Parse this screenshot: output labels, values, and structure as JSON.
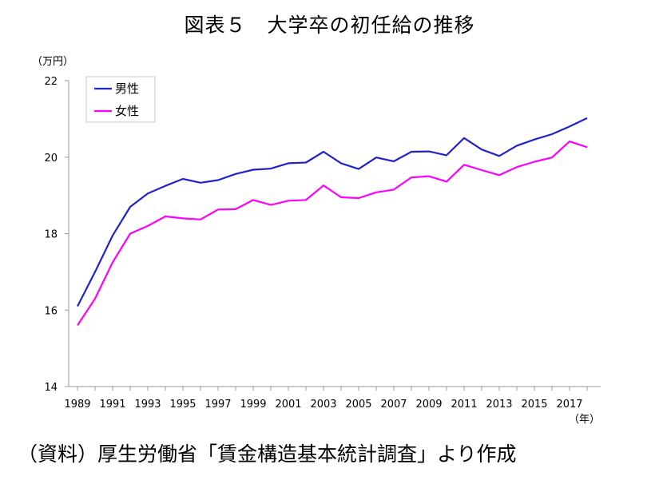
{
  "title": "図表５　大学卒の初任給の推移",
  "source": "（資料）厚生労働省「賃金構造基本統計調査」より作成",
  "chart_data": {
    "type": "line",
    "ylabel": "（万円）",
    "xlabel": "（年）",
    "ylim": [
      14,
      22
    ],
    "yticks": [
      14,
      16,
      18,
      20,
      22
    ],
    "xticks": [
      1989,
      1991,
      1993,
      1995,
      1997,
      1999,
      2001,
      2003,
      2005,
      2007,
      2009,
      2011,
      2013,
      2015,
      2017
    ],
    "x": [
      1989,
      1990,
      1991,
      1992,
      1993,
      1994,
      1995,
      1996,
      1997,
      1998,
      1999,
      2000,
      2001,
      2002,
      2003,
      2004,
      2005,
      2006,
      2007,
      2008,
      2009,
      2010,
      2011,
      2012,
      2013,
      2014,
      2015,
      2016,
      2017,
      2018
    ],
    "grid": false,
    "legend_position": "top-left",
    "series": [
      {
        "name": "男性",
        "color": "#2222cc",
        "values": [
          16.1,
          17.0,
          17.95,
          18.7,
          19.05,
          19.25,
          19.43,
          19.33,
          19.4,
          19.56,
          19.67,
          19.7,
          19.84,
          19.86,
          20.14,
          19.84,
          19.69,
          19.99,
          19.89,
          20.14,
          20.15,
          20.05,
          20.5,
          20.2,
          20.03,
          20.3,
          20.46,
          20.6,
          20.8,
          21.02
        ]
      },
      {
        "name": "女性",
        "color": "#ff00ff",
        "values": [
          15.6,
          16.3,
          17.25,
          18.0,
          18.2,
          18.45,
          18.4,
          18.37,
          18.63,
          18.64,
          18.88,
          18.75,
          18.86,
          18.88,
          19.26,
          18.95,
          18.93,
          19.08,
          19.15,
          19.47,
          19.5,
          19.36,
          19.8,
          19.66,
          19.53,
          19.74,
          19.88,
          19.99,
          20.41,
          20.26
        ]
      }
    ]
  }
}
